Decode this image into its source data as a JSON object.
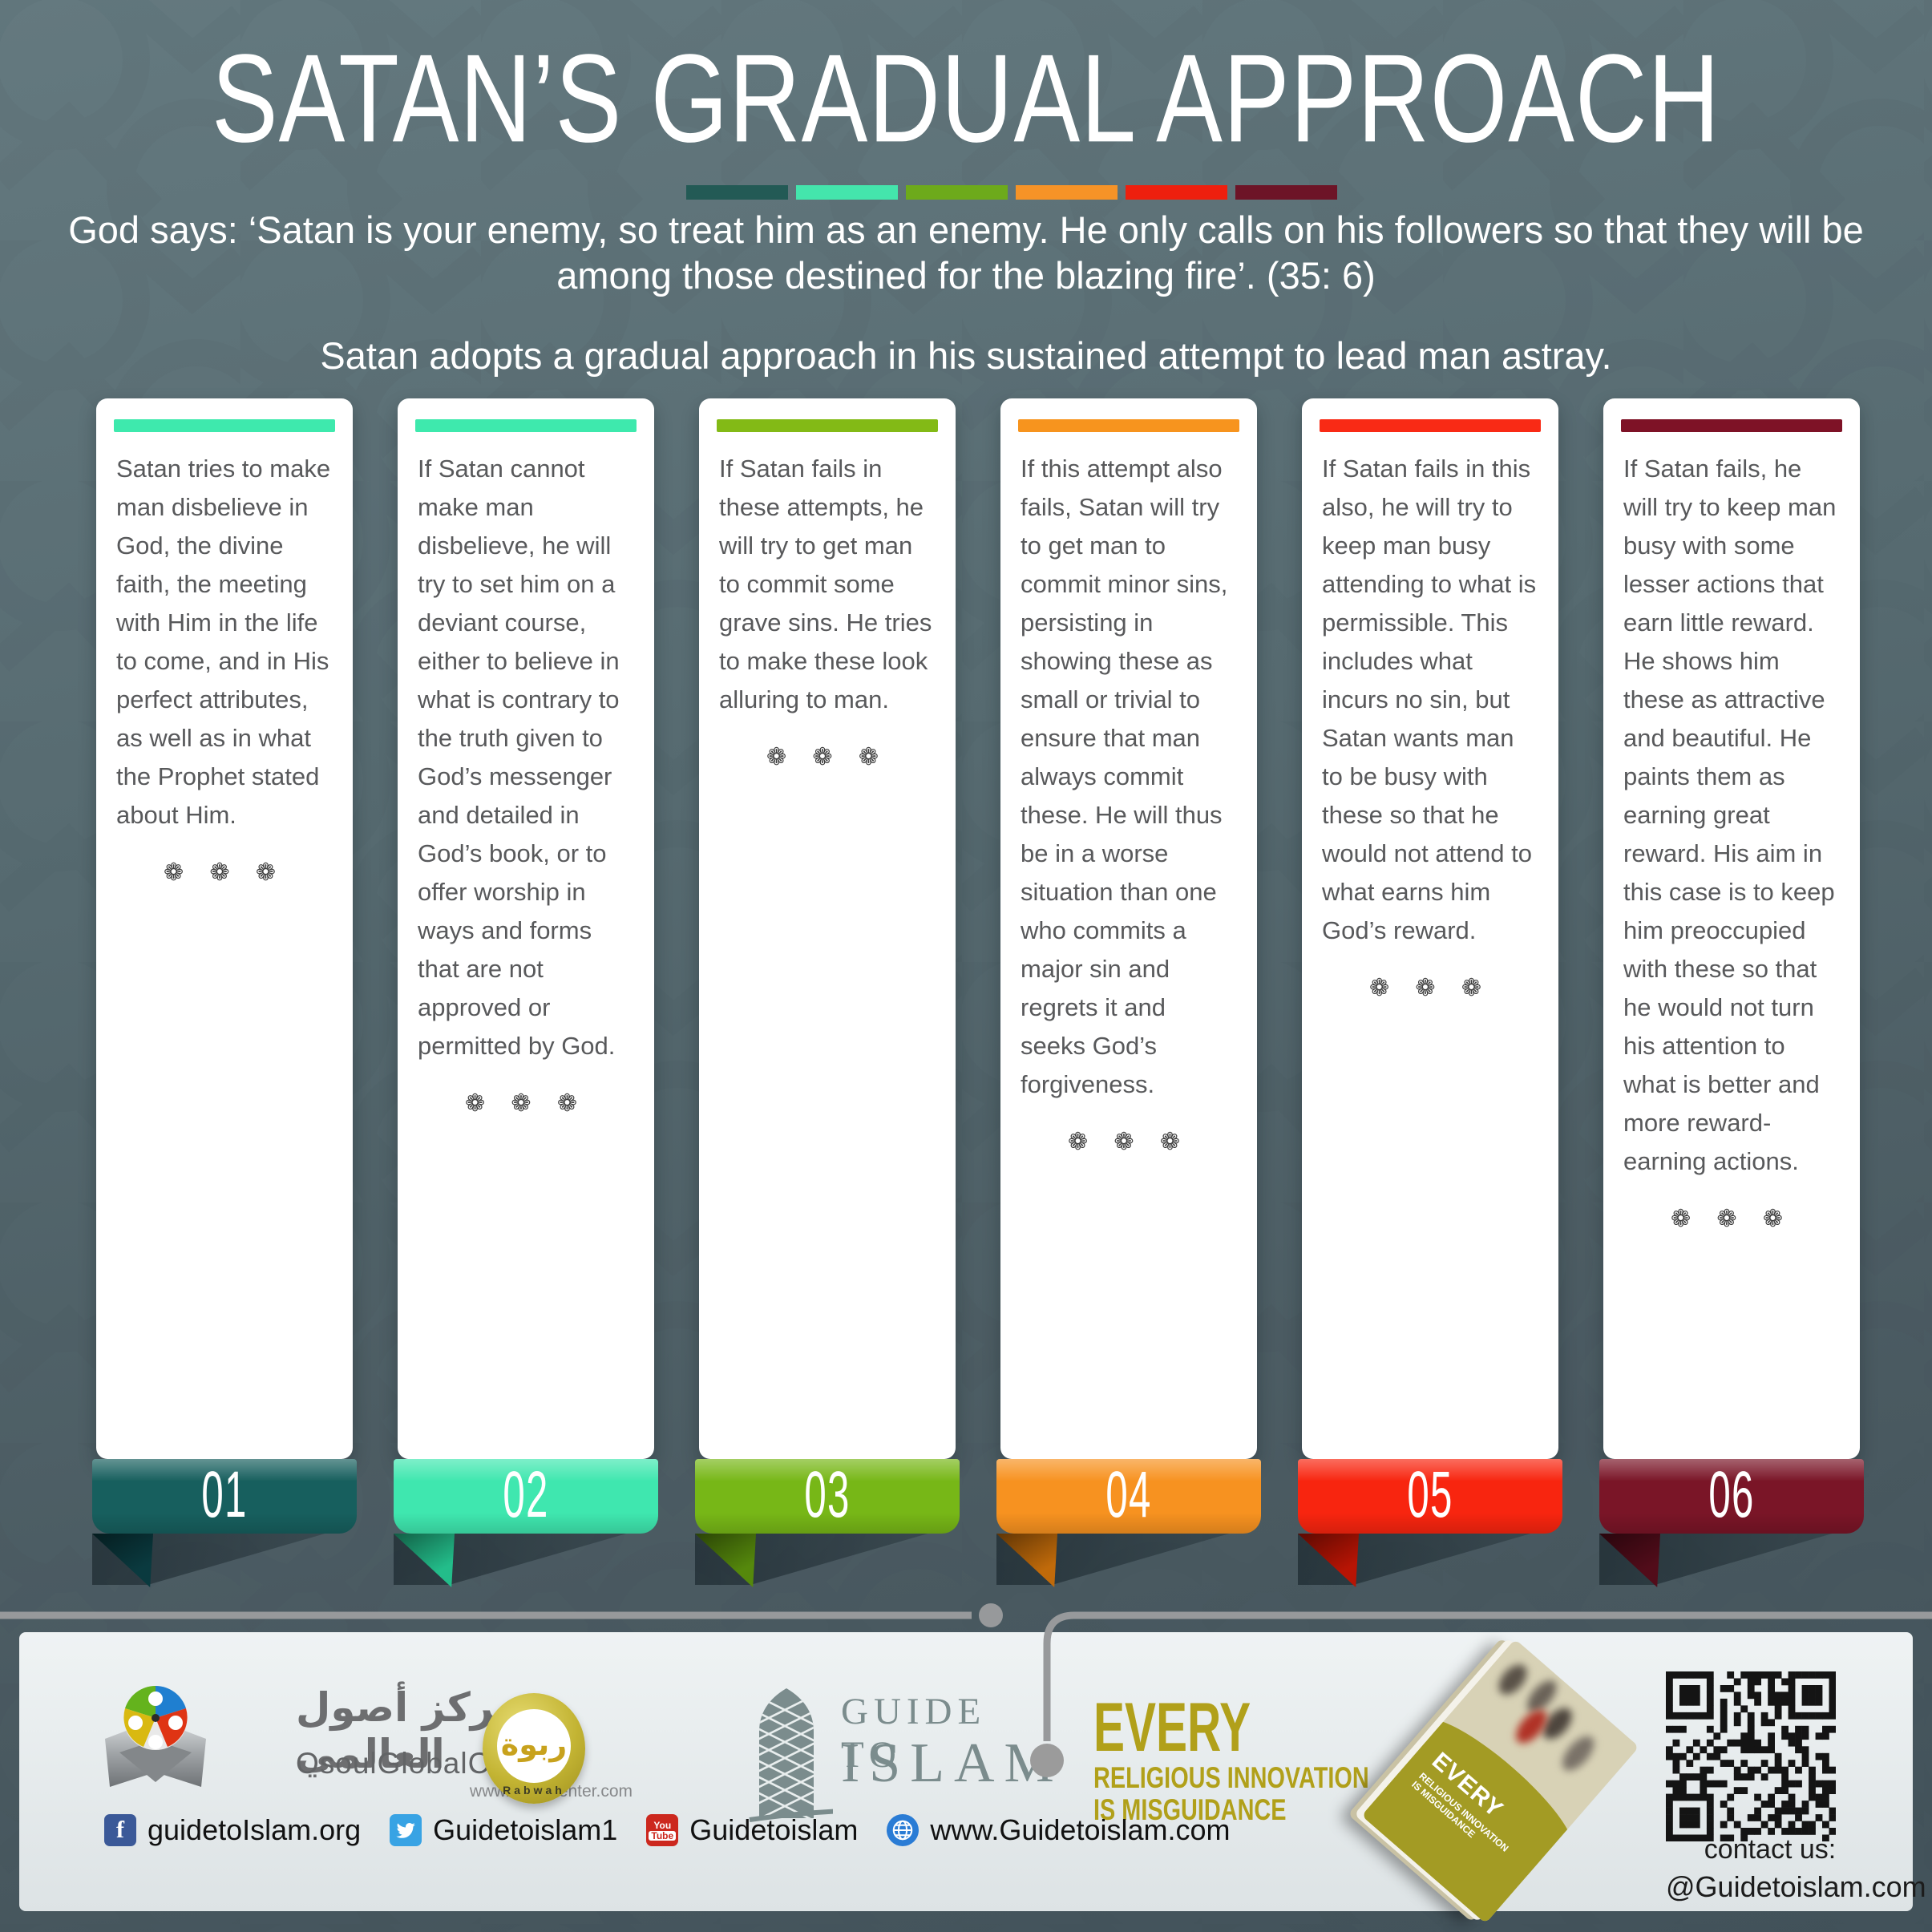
{
  "title": "SATAN’S GRADUAL APPROACH",
  "quote": "God says: ‘Satan is your enemy, so treat him as an enemy. He only calls on his followers so that they will be among those destined for the blazing fire’. (35: 6)",
  "intro": "Satan adopts a gradual approach in his sustained attempt to lead man astray.",
  "ornament": "❁ ❁ ❁",
  "dashes": [
    "#235a55",
    "#44e5ac",
    "#6daa1b",
    "#f69327",
    "#ee1f0e",
    "#6d1427"
  ],
  "steps": [
    {
      "num": "01",
      "bar_color": "#3ee9ad",
      "ribbon_color": "#175f5e",
      "fold_color": "#0a3a3f",
      "text": "Satan tries to make man disbelieve in God, the divine faith, the meeting with Him in the life to come, and in His perfect attributes, as well as in what the Prophet stated about Him."
    },
    {
      "num": "02",
      "bar_color": "#3ee9ad",
      "ribbon_color": "#3fe7af",
      "fold_color": "#23bd8a",
      "text": "If Satan cannot make man disbelieve, he will try to set him on a deviant course, either to believe in what is contrary to the truth given to God’s messenger and detailed in God’s book, or to offer worship in ways and forms that are not approved or permitted by God."
    },
    {
      "num": "03",
      "bar_color": "#83ba16",
      "ribbon_color": "#77b717",
      "fold_color": "#55880c",
      "text": "If Satan fails in these attempts, he will try to get man to commit some grave sins. He tries to make these look alluring to man."
    },
    {
      "num": "04",
      "bar_color": "#f7941e",
      "ribbon_color": "#f79220",
      "fold_color": "#c06a0a",
      "text": "If this attempt also fails, Satan will try to get man to commit minor sins, persisting in showing these as small or trivial to ensure that man always commit these. He will thus be in a worse situation than one who commits a major sin and regrets it and seeks God’s forgiveness."
    },
    {
      "num": "05",
      "bar_color": "#f92a15",
      "ribbon_color": "#f8250f",
      "fold_color": "#b81404",
      "text": "If Satan fails in this also, he will try to keep man busy attending to what is permissible. This includes what incurs no sin, but Satan wants man to be busy with these so that he would not attend to what earns him God’s reward."
    },
    {
      "num": "06",
      "bar_color": "#7e1226",
      "ribbon_color": "#7a1527",
      "fold_color": "#520c1a",
      "text": "If Satan fails, he will try to keep man busy with some lesser actions that earn little reward. He shows him these as attractive and beautiful. He paints them as earning great reward. His aim in this case is to keep him preoccupied with these so that he would not turn his attention to what is better and more reward-earning actions."
    }
  ],
  "footer": {
    "osoul": {
      "arabic": "مركز أصول العالمي",
      "name": "OsoulGlobalCenter",
      "url": "www.osoulcenter.com"
    },
    "rabwah": {
      "arabic": "ربوة",
      "name": "Rabwah"
    },
    "guide": {
      "line1": "GUIDE TO",
      "line2": "ISLAM"
    },
    "slogan": {
      "line1": "EVERY",
      "line2": "RELIGIOUS INNOVATION",
      "line3": "IS MISGUIDANCE",
      "color": "#b1a01a"
    },
    "book": {
      "line1": "EVERY",
      "line2": "RELIGIOUS INNOVATION",
      "line3": "IS MISGUIDANCE"
    },
    "social": [
      {
        "network": "facebook",
        "label": "guidetoIslam.org"
      },
      {
        "network": "twitter",
        "label": "Guidetoislam1"
      },
      {
        "network": "youtube",
        "icon_text1": "You",
        "icon_text2": "Tube",
        "label": "Guidetoislam"
      },
      {
        "network": "web",
        "label": "www.Guidetoislam.com"
      }
    ],
    "contact": {
      "line1": "contact us:",
      "line2": "@Guidetoislam.com"
    }
  }
}
